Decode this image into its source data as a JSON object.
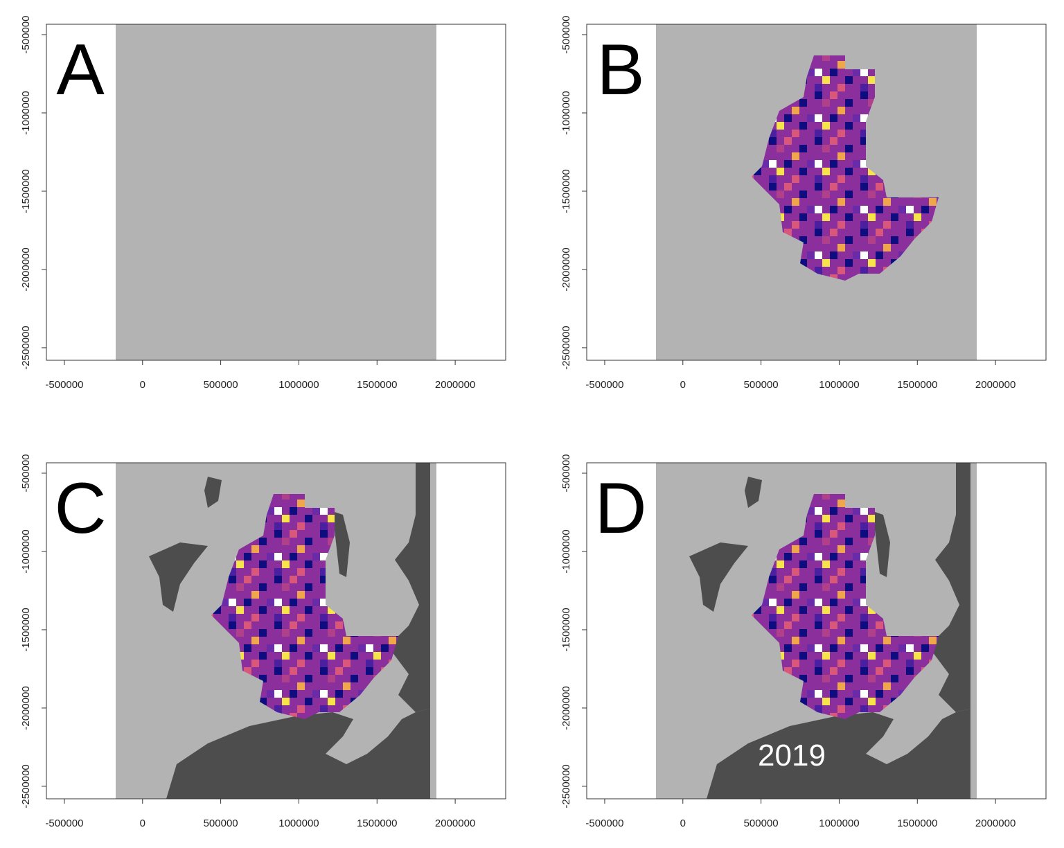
{
  "chart_data": [
    {
      "type": "raster",
      "label": "A",
      "layers": [
        "extent"
      ],
      "xlim": [
        -615000,
        2323000
      ],
      "ylim": [
        -433600,
        -2580000
      ],
      "xticks": [
        -500000,
        0,
        500000,
        1000000,
        1500000,
        2000000
      ],
      "yticks": [
        -500000,
        -1000000,
        -1500000,
        -2000000,
        -2500000
      ]
    },
    {
      "type": "raster",
      "label": "B",
      "layers": [
        "extent",
        "density"
      ],
      "xlim": [
        -615000,
        2323000
      ],
      "ylim": [
        -433600,
        -2580000
      ],
      "xticks": [
        -500000,
        0,
        500000,
        1000000,
        1500000,
        2000000
      ],
      "yticks": [
        -500000,
        -1000000,
        -1500000,
        -2000000,
        -2500000
      ]
    },
    {
      "type": "raster",
      "label": "C",
      "layers": [
        "extent",
        "land",
        "density"
      ],
      "xlim": [
        -615000,
        2323000
      ],
      "ylim": [
        -433600,
        -2580000
      ],
      "xticks": [
        -500000,
        0,
        500000,
        1000000,
        1500000,
        2000000
      ],
      "yticks": [
        -500000,
        -1000000,
        -1500000,
        -2000000,
        -2500000
      ]
    },
    {
      "type": "raster",
      "label": "D",
      "layers": [
        "extent",
        "land",
        "density"
      ],
      "annotation": "2019",
      "xlim": [
        -615000,
        2323000
      ],
      "ylim": [
        -433600,
        -2580000
      ],
      "xticks": [
        -500000,
        0,
        500000,
        1000000,
        1500000,
        2000000
      ],
      "yticks": [
        -500000,
        -1000000,
        -1500000,
        -2000000,
        -2500000
      ]
    }
  ]
}
